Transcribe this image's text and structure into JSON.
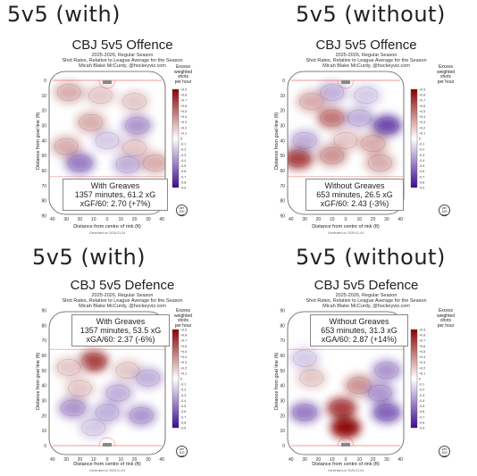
{
  "panels": [
    {
      "heading": "5v5 (with)",
      "title": "CBJ 5v5 Offence",
      "season": "2025-2026, Regular Season",
      "subtitle": "Shot Rates, Relative to League Average for the Season",
      "credit": "Micah Blake McCurdy, @hockeyviz.com",
      "box_line1": "With Greaves",
      "box_line2": "1357 minutes, 61.2 xG",
      "box_line3": "xGF/60: 2.70 (+7%)",
      "ylabel": "Distance from goal line (ft)",
      "xlabel": "Distance from centre of rink (ft)",
      "generated": "Generated on 2026-01-04"
    },
    {
      "heading": "5v5 (without)",
      "title": "CBJ 5v5 Offence",
      "season": "2025-2026, Regular Season",
      "subtitle": "Shot Rates, Relative to League Average for the Season",
      "credit": "Micah Blake McCurdy, @hockeyviz.com",
      "box_line1": "Without Greaves",
      "box_line2": "653 minutes, 26.5 xG",
      "box_line3": "xGF/60: 2.43 (-3%)",
      "ylabel": "Distance from goal line (ft)",
      "xlabel": "Distance from centre of rink (ft)",
      "generated": "Generated on 2026-01-04"
    },
    {
      "heading": "5v5 (with)",
      "title": "CBJ 5v5 Defence",
      "season": "2025-2026, Regular Season",
      "subtitle": "Shot Rates, Relative to League Average for the Season",
      "credit": "Micah Blake McCurdy, @hockeyviz.com",
      "box_line1": "With Greaves",
      "box_line2": "1357 minutes, 53.5 xG",
      "box_line3": "xGA/60: 2.37 (-6%)",
      "ylabel": "Distance from goal line (ft)",
      "xlabel": "Distance from centre of rink (ft)",
      "generated": "Generated on 2026-01-04"
    },
    {
      "heading": "5v5 (without)",
      "title": "CBJ 5v5 Defence",
      "season": "2025-2026, Regular Season",
      "subtitle": "Shot Rates, Relative to League Average for the Season",
      "credit": "Micah Blake McCurdy, @hockeyviz.com",
      "box_line1": "Without Greaves",
      "box_line2": "653 minutes, 31.3 xG",
      "box_line3": "xGA/60: 2.87 (+14%)",
      "ylabel": "Distance from goal line (ft)",
      "xlabel": "Distance from centre of rink (ft)",
      "generated": "Generated on 2026-01-04"
    }
  ],
  "legend": {
    "label": [
      "Excess",
      "weighted",
      "shots",
      "per hour"
    ],
    "ticks": [
      "+0.9",
      "+0.8",
      "+0.7",
      "+0.6",
      "+0.5",
      "+0.4",
      "+0.3",
      "+0.2",
      "+0.1",
      "0",
      "-0.1",
      "-0.2",
      "-0.3",
      "-0.4",
      "-0.5",
      "-0.6",
      "-0.7",
      "-0.8",
      "-0.9"
    ],
    "per60": [
      "per",
      "100",
      "sqft"
    ],
    "colors": {
      "high": "#8b0000",
      "mid": "#ffffff",
      "low": "#3d0a91"
    }
  },
  "chart_data": [
    {
      "type": "heatmap",
      "title": "CBJ 5v5 Offence",
      "xlabel": "Distance from centre of rink (ft)",
      "ylabel": "Distance from goal line (ft)",
      "xticks": [
        40,
        30,
        20,
        10,
        0,
        10,
        20,
        30,
        40
      ],
      "yticks": [
        0,
        10,
        20,
        30,
        40,
        50,
        60,
        70,
        80,
        90
      ],
      "colorbar_range": [
        -0.9,
        0.9
      ],
      "blobs": [
        {
          "x": -28,
          "y": 8,
          "value": 0.3
        },
        {
          "x": -5,
          "y": 10,
          "value": 0.2
        },
        {
          "x": 20,
          "y": 14,
          "value": 0.2
        },
        {
          "x": -12,
          "y": 28,
          "value": 0.3
        },
        {
          "x": 22,
          "y": 30,
          "value": -0.4
        },
        {
          "x": 0,
          "y": 40,
          "value": -0.2
        },
        {
          "x": -30,
          "y": 44,
          "value": 0.3
        },
        {
          "x": 20,
          "y": 45,
          "value": 0.2
        },
        {
          "x": -20,
          "y": 55,
          "value": -0.5
        },
        {
          "x": 15,
          "y": 56,
          "value": -0.3
        },
        {
          "x": 35,
          "y": 55,
          "value": 0.3
        }
      ]
    },
    {
      "type": "heatmap",
      "title": "CBJ 5v5 Offence",
      "xlabel": "Distance from centre of rink (ft)",
      "ylabel": "Distance from goal line (ft)",
      "xticks": [
        40,
        30,
        20,
        10,
        0,
        10,
        20,
        30,
        40
      ],
      "yticks": [
        0,
        10,
        20,
        30,
        40,
        50,
        60,
        70,
        80,
        90
      ],
      "colorbar_range": [
        -0.9,
        0.9
      ],
      "blobs": [
        {
          "x": -10,
          "y": 8,
          "value": -0.3
        },
        {
          "x": 15,
          "y": 10,
          "value": -0.2
        },
        {
          "x": -25,
          "y": 14,
          "value": 0.3
        },
        {
          "x": -10,
          "y": 25,
          "value": 0.5
        },
        {
          "x": 30,
          "y": 30,
          "value": -0.7
        },
        {
          "x": 10,
          "y": 25,
          "value": -0.3
        },
        {
          "x": -30,
          "y": 40,
          "value": -0.3
        },
        {
          "x": 0,
          "y": 40,
          "value": 0.2
        },
        {
          "x": 20,
          "y": 42,
          "value": 0.3
        },
        {
          "x": -35,
          "y": 52,
          "value": 0.7
        },
        {
          "x": -10,
          "y": 50,
          "value": 0.4
        },
        {
          "x": 25,
          "y": 55,
          "value": 0.3
        }
      ]
    },
    {
      "type": "heatmap",
      "title": "CBJ 5v5 Defence",
      "xlabel": "Distance from centre of rink (ft)",
      "ylabel": "Distance from goal line (ft)",
      "xticks": [
        40,
        30,
        20,
        10,
        0,
        10,
        20,
        30,
        40
      ],
      "yticks": [
        0,
        10,
        20,
        30,
        40,
        50,
        60,
        70,
        80,
        90
      ],
      "colorbar_range": [
        -0.9,
        0.9
      ],
      "blobs": [
        {
          "x": -10,
          "y": 56,
          "value": 0.7
        },
        {
          "x": -28,
          "y": 52,
          "value": 0.2
        },
        {
          "x": 15,
          "y": 50,
          "value": 0.2
        },
        {
          "x": 30,
          "y": 45,
          "value": -0.3
        },
        {
          "x": -20,
          "y": 38,
          "value": 0.2
        },
        {
          "x": 8,
          "y": 35,
          "value": -0.3
        },
        {
          "x": -25,
          "y": 25,
          "value": -0.4
        },
        {
          "x": 0,
          "y": 22,
          "value": -0.3
        },
        {
          "x": 25,
          "y": 20,
          "value": -0.4
        },
        {
          "x": -10,
          "y": 12,
          "value": -0.2
        }
      ]
    },
    {
      "type": "heatmap",
      "title": "CBJ 5v5 Defence",
      "xlabel": "Distance from centre of rink (ft)",
      "ylabel": "Distance from goal line (ft)",
      "xticks": [
        40,
        30,
        20,
        10,
        0,
        10,
        20,
        30,
        40
      ],
      "yticks": [
        0,
        10,
        20,
        30,
        40,
        50,
        60,
        70,
        80,
        90
      ],
      "colorbar_range": [
        -0.9,
        0.9
      ],
      "blobs": [
        {
          "x": 0,
          "y": 12,
          "value": 0.9
        },
        {
          "x": -3,
          "y": 25,
          "value": 0.7
        },
        {
          "x": 10,
          "y": 40,
          "value": 0.4
        },
        {
          "x": -25,
          "y": 45,
          "value": 0.2
        },
        {
          "x": 30,
          "y": 50,
          "value": -0.4
        },
        {
          "x": -30,
          "y": 22,
          "value": -0.5
        },
        {
          "x": 30,
          "y": 22,
          "value": -0.6
        },
        {
          "x": 25,
          "y": 35,
          "value": -0.4
        },
        {
          "x": -30,
          "y": 58,
          "value": -0.2
        }
      ]
    }
  ]
}
